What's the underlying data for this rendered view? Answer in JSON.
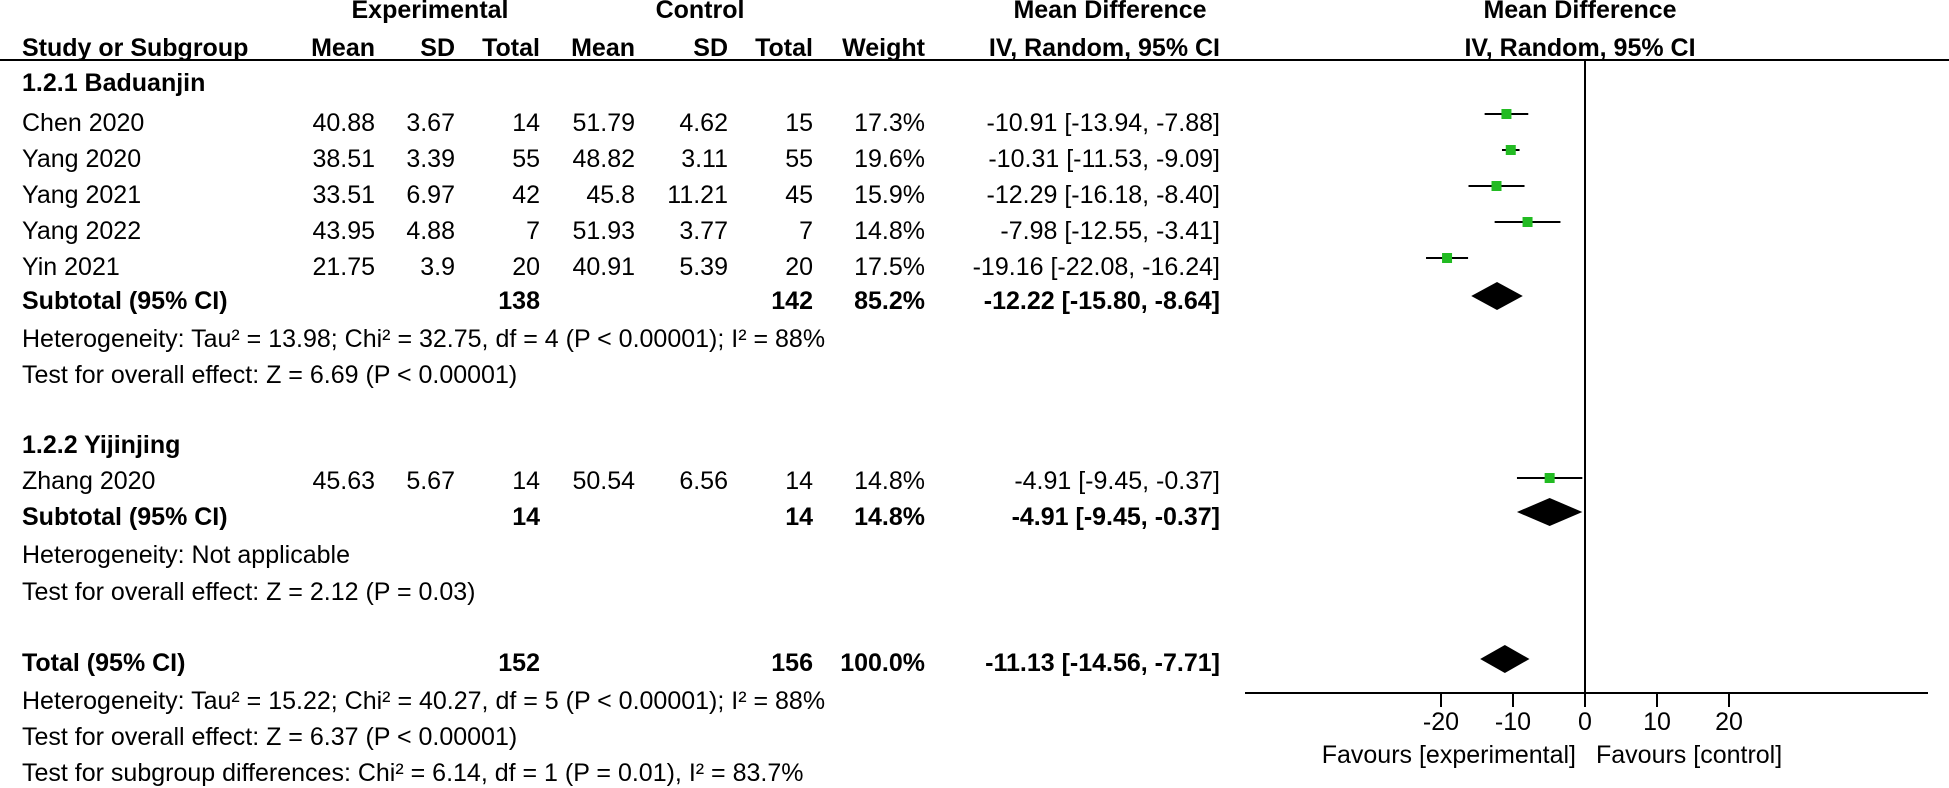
{
  "header": {
    "group_experimental": "Experimental",
    "group_control": "Control",
    "group_md_left": "Mean Difference",
    "group_md_right": "Mean Difference",
    "col_study": "Study or Subgroup",
    "col_mean_e": "Mean",
    "col_sd_e": "SD",
    "col_total_e": "Total",
    "col_mean_c": "Mean",
    "col_sd_c": "SD",
    "col_total_c": "Total",
    "col_weight": "Weight",
    "col_ci_left": "IV, Random, 95% CI",
    "col_ci_right": "IV, Random, 95% CI"
  },
  "subgroups": [
    {
      "title": "1.2.1 Baduanjin",
      "studies": [
        {
          "name": "Chen 2020",
          "mean_e": "40.88",
          "sd_e": "3.67",
          "total_e": "14",
          "mean_c": "51.79",
          "sd_c": "4.62",
          "total_c": "15",
          "weight": "17.3%",
          "ci": "-10.91 [-13.94, -7.88]"
        },
        {
          "name": "Yang 2020",
          "mean_e": "38.51",
          "sd_e": "3.39",
          "total_e": "55",
          "mean_c": "48.82",
          "sd_c": "3.11",
          "total_c": "55",
          "weight": "19.6%",
          "ci": "-10.31 [-11.53, -9.09]"
        },
        {
          "name": "Yang 2021",
          "mean_e": "33.51",
          "sd_e": "6.97",
          "total_e": "42",
          "mean_c": "45.8",
          "sd_c": "11.21",
          "total_c": "45",
          "weight": "15.9%",
          "ci": "-12.29 [-16.18, -8.40]"
        },
        {
          "name": "Yang 2022",
          "mean_e": "43.95",
          "sd_e": "4.88",
          "total_e": "7",
          "mean_c": "51.93",
          "sd_c": "3.77",
          "total_c": "7",
          "weight": "14.8%",
          "ci": "-7.98 [-12.55, -3.41]"
        },
        {
          "name": "Yin 2021",
          "mean_e": "21.75",
          "sd_e": "3.9",
          "total_e": "20",
          "mean_c": "40.91",
          "sd_c": "5.39",
          "total_c": "20",
          "weight": "17.5%",
          "ci": "-19.16 [-22.08, -16.24]"
        }
      ],
      "subtotal": {
        "label": "Subtotal (95% CI)",
        "total_e": "138",
        "total_c": "142",
        "weight": "85.2%",
        "ci": "-12.22 [-15.80, -8.64]"
      },
      "heterogeneity": "Heterogeneity: Tau² = 13.98; Chi² = 32.75, df = 4 (P < 0.00001); I² = 88%",
      "overall": "Test for overall effect: Z = 6.69 (P < 0.00001)"
    },
    {
      "title": "1.2.2 Yijinjing",
      "studies": [
        {
          "name": "Zhang 2020",
          "mean_e": "45.63",
          "sd_e": "5.67",
          "total_e": "14",
          "mean_c": "50.54",
          "sd_c": "6.56",
          "total_c": "14",
          "weight": "14.8%",
          "ci": "-4.91 [-9.45, -0.37]"
        }
      ],
      "subtotal": {
        "label": "Subtotal (95% CI)",
        "total_e": "14",
        "total_c": "14",
        "weight": "14.8%",
        "ci": "-4.91 [-9.45, -0.37]"
      },
      "heterogeneity": "Heterogeneity: Not applicable",
      "overall": "Test for overall effect: Z = 2.12 (P = 0.03)"
    }
  ],
  "total": {
    "label": "Total (95% CI)",
    "total_e": "152",
    "total_c": "156",
    "weight": "100.0%",
    "ci": "-11.13 [-14.56, -7.71]",
    "heterogeneity": "Heterogeneity: Tau² = 15.22; Chi² = 40.27, df = 5 (P < 0.00001); I² = 88%",
    "overall": "Test for overall effect: Z = 6.37 (P < 0.00001)",
    "subgroup_diff": "Test for subgroup differences: Chi² = 6.14, df = 1 (P = 0.01), I² = 83.7%"
  },
  "chart_data": {
    "type": "scatter",
    "xlim": [
      -20,
      20
    ],
    "ticks": [
      "-20",
      "-10",
      "0",
      "10",
      "20"
    ],
    "tick_values": [
      -20,
      -10,
      0,
      10,
      20
    ],
    "favours_left": "Favours [experimental]",
    "favours_right": "Favours [control]",
    "marker_color": "#22bb22",
    "studies": [
      {
        "md": -10.91,
        "lo": -13.94,
        "hi": -7.88
      },
      {
        "md": -10.31,
        "lo": -11.53,
        "hi": -9.09
      },
      {
        "md": -12.29,
        "lo": -16.18,
        "hi": -8.4
      },
      {
        "md": -7.98,
        "lo": -12.55,
        "hi": -3.41
      },
      {
        "md": -19.16,
        "lo": -22.08,
        "hi": -16.24
      },
      {
        "md": -4.91,
        "lo": -9.45,
        "hi": -0.37
      }
    ],
    "diamonds": [
      {
        "md": -12.22,
        "lo": -15.8,
        "hi": -8.64
      },
      {
        "md": -4.91,
        "lo": -9.45,
        "hi": -0.37
      },
      {
        "md": -11.13,
        "lo": -14.56,
        "hi": -7.71
      }
    ]
  }
}
